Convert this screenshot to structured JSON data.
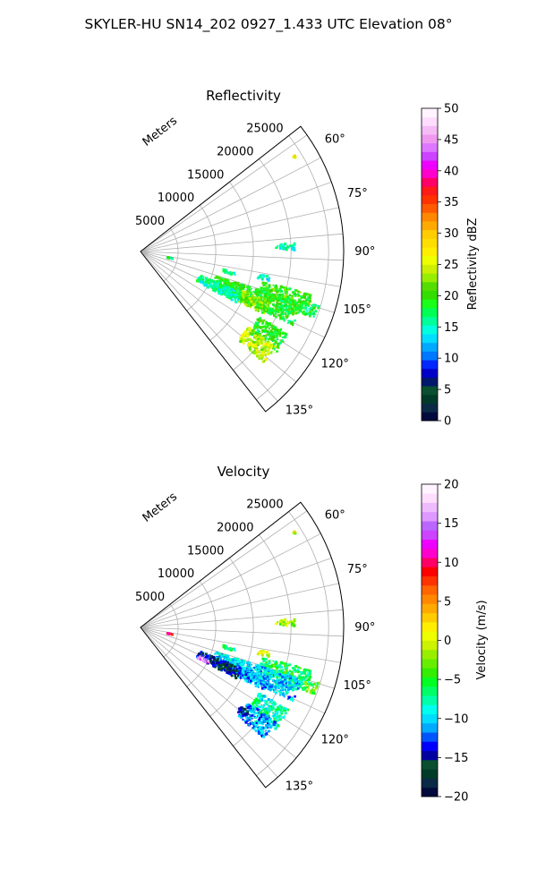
{
  "figure_title": "SKYLER-HU  SN14_202  0927_1.433 UTC Elevation 08°",
  "chart_data": [
    {
      "type": "polar-sector",
      "title": "Reflectivity",
      "radial_axis_label": "Meters",
      "range_ticks": [
        5000,
        10000,
        15000,
        20000,
        25000
      ],
      "range_tick_labels": [
        "5000",
        "10000",
        "15000",
        "20000",
        "25000"
      ],
      "rmax": 27000,
      "azimuth_ticks": [
        60,
        75,
        90,
        105,
        120,
        135
      ],
      "azimuth_tick_labels": [
        "60°",
        "75°",
        "90°",
        "105°",
        "120°",
        "135°"
      ],
      "azimuth_range": [
        52,
        142
      ],
      "grid": true,
      "colorbar": {
        "label": "Reflectivity dBZ",
        "min": 0,
        "max": 50,
        "ticks": [
          0,
          5,
          10,
          15,
          20,
          25,
          30,
          35,
          40,
          45,
          50
        ],
        "tick_labels": [
          "0",
          "5",
          "10",
          "15",
          "20",
          "25",
          "30",
          "35",
          "40",
          "45",
          "50"
        ]
      },
      "echo_regions": [
        {
          "az_min": 58,
          "az_max": 59,
          "r_min": 23700,
          "r_max": 24200,
          "value": 27
        },
        {
          "az_min": 87,
          "az_max": 89.5,
          "r_min": 18000,
          "r_max": 20500,
          "value": 15
        },
        {
          "az_min": 101,
          "az_max": 103.5,
          "r_min": 3500,
          "r_max": 4400,
          "value": 18
        },
        {
          "az_min": 102,
          "az_max": 104,
          "r_min": 11300,
          "r_max": 13000,
          "value": 16
        },
        {
          "az_min": 101,
          "az_max": 103,
          "r_min": 16000,
          "r_max": 17500,
          "value": 15
        },
        {
          "az_min": 104,
          "az_max": 111,
          "r_min": 16500,
          "r_max": 23500,
          "value": 20
        },
        {
          "az_min": 108,
          "az_max": 116,
          "r_min": 10500,
          "r_max": 22500,
          "value": 19
        },
        {
          "az_min": 111,
          "az_max": 117,
          "r_min": 14500,
          "r_max": 18500,
          "value": 22
        },
        {
          "az_min": 112,
          "az_max": 118,
          "r_min": 8500,
          "r_max": 14500,
          "value": 16
        },
        {
          "az_min": 119,
          "az_max": 127,
          "r_min": 18000,
          "r_max": 22500,
          "value": 19
        },
        {
          "az_min": 125,
          "az_max": 132,
          "r_min": 17500,
          "r_max": 22000,
          "value": 24
        },
        {
          "az_min": 107,
          "az_max": 111,
          "r_min": 23000,
          "r_max": 24800,
          "value": 18
        }
      ]
    },
    {
      "type": "polar-sector",
      "title": "Velocity",
      "radial_axis_label": "Meters",
      "range_ticks": [
        5000,
        10000,
        15000,
        20000,
        25000
      ],
      "range_tick_labels": [
        "5000",
        "10000",
        "15000",
        "20000",
        "25000"
      ],
      "rmax": 27000,
      "azimuth_ticks": [
        60,
        75,
        90,
        105,
        120,
        135
      ],
      "azimuth_tick_labels": [
        "60°",
        "75°",
        "90°",
        "105°",
        "120°",
        "135°"
      ],
      "azimuth_range": [
        52,
        142
      ],
      "grid": true,
      "colorbar": {
        "label": "Velocity (m/s)",
        "min": -20,
        "max": 20,
        "ticks": [
          -20,
          -15,
          -10,
          -5,
          0,
          5,
          10,
          15,
          20
        ],
        "tick_labels": [
          "−20",
          "−15",
          "−10",
          "−5",
          "0",
          "5",
          "10",
          "15",
          "20"
        ]
      },
      "echo_regions": [
        {
          "az_min": 58,
          "az_max": 59,
          "r_min": 23700,
          "r_max": 24200,
          "value": 0
        },
        {
          "az_min": 87,
          "az_max": 89.5,
          "r_min": 18000,
          "r_max": 20500,
          "value": -2
        },
        {
          "az_min": 101,
          "az_max": 103.5,
          "r_min": 3500,
          "r_max": 4400,
          "value": 10
        },
        {
          "az_min": 102,
          "az_max": 104,
          "r_min": 11300,
          "r_max": 13000,
          "value": -7
        },
        {
          "az_min": 101,
          "az_max": 103,
          "r_min": 16000,
          "r_max": 17500,
          "value": 0
        },
        {
          "az_min": 104,
          "az_max": 111,
          "r_min": 16500,
          "r_max": 23500,
          "value": -6
        },
        {
          "az_min": 108,
          "az_max": 116,
          "r_min": 10500,
          "r_max": 22500,
          "value": -10
        },
        {
          "az_min": 111,
          "az_max": 117,
          "r_min": 14500,
          "r_max": 18500,
          "value": -11
        },
        {
          "az_min": 112,
          "az_max": 118,
          "r_min": 8500,
          "r_max": 14500,
          "value": -15
        },
        {
          "az_min": 116,
          "az_max": 118.5,
          "r_min": 8300,
          "r_max": 10200,
          "value": 15
        },
        {
          "az_min": 119,
          "az_max": 127,
          "r_min": 18000,
          "r_max": 22500,
          "value": -8
        },
        {
          "az_min": 125,
          "az_max": 132,
          "r_min": 17500,
          "r_max": 22000,
          "value": -11
        },
        {
          "az_min": 128,
          "az_max": 131,
          "r_min": 17000,
          "r_max": 18500,
          "value": -15
        },
        {
          "az_min": 107,
          "az_max": 111,
          "r_min": 23000,
          "r_max": 24800,
          "value": -4
        }
      ]
    }
  ],
  "colors": {
    "grid": "#b0b0b0",
    "frame": "#000000",
    "reflectivity_scale": [
      "#000a3d",
      "#0a2a45",
      "#003b2a",
      "#0a4f2f",
      "#00196b",
      "#0000c8",
      "#0028ff",
      "#0078ff",
      "#00aaff",
      "#00ddff",
      "#00ffe0",
      "#00ff9a",
      "#00ff55",
      "#1aff1a",
      "#33dd00",
      "#55dd00",
      "#99ee00",
      "#ccf000",
      "#eeff00",
      "#ffee00",
      "#ffdd00",
      "#ffcc00",
      "#ffaa00",
      "#ff8800",
      "#ff5a00",
      "#ff3300",
      "#ff1a1a",
      "#ff0066",
      "#ff00cc",
      "#ee00ff",
      "#cc44ff",
      "#dd77ff",
      "#ee99ee",
      "#f5bbf5",
      "#ffddff",
      "#fff4ff"
    ],
    "velocity_scale": [
      "#000a3d",
      "#0a2a45",
      "#003b2a",
      "#0a4f2f",
      "#0000a0",
      "#0000ff",
      "#0055ff",
      "#00aaff",
      "#00ddff",
      "#00ffee",
      "#00ffaa",
      "#00ff66",
      "#00ff22",
      "#33ee00",
      "#66ee00",
      "#99ee00",
      "#ccf200",
      "#eeff00",
      "#ffee00",
      "#ffcc00",
      "#ffaa00",
      "#ff8800",
      "#ff6600",
      "#ff3300",
      "#ff0000",
      "#ff0066",
      "#ff00cc",
      "#ee00ff",
      "#cc44ff",
      "#bb66ff",
      "#dd99ff",
      "#eebbff",
      "#ffddff",
      "#fff4ff"
    ]
  }
}
